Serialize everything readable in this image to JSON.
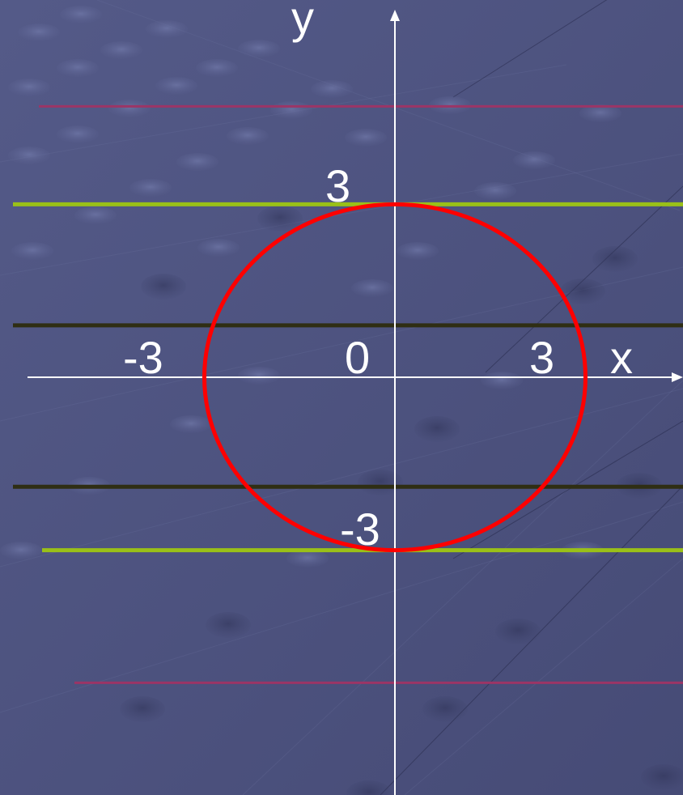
{
  "axes": {
    "x_label": "x",
    "y_label": "y"
  },
  "ticks": {
    "x_neg": "-3",
    "origin": "0",
    "x_pos": "3",
    "y_pos": "3",
    "y_neg": "-3"
  },
  "circle": {
    "center": [
      0,
      0
    ],
    "radius": 3,
    "color": "#ff0000"
  },
  "horizontal_lines": [
    {
      "y": 4.7,
      "color": "#9b3566"
    },
    {
      "y": 3,
      "color": "#9ac018"
    },
    {
      "y": 0.9,
      "color": "#2f2e14"
    },
    {
      "y": -1.9,
      "color": "#2f2e14"
    },
    {
      "y": -3,
      "color": "#9ac018"
    },
    {
      "y": -5.3,
      "color": "#9b3566"
    }
  ],
  "colors": {
    "background": "#4e5480",
    "axis": "#ffffff"
  }
}
